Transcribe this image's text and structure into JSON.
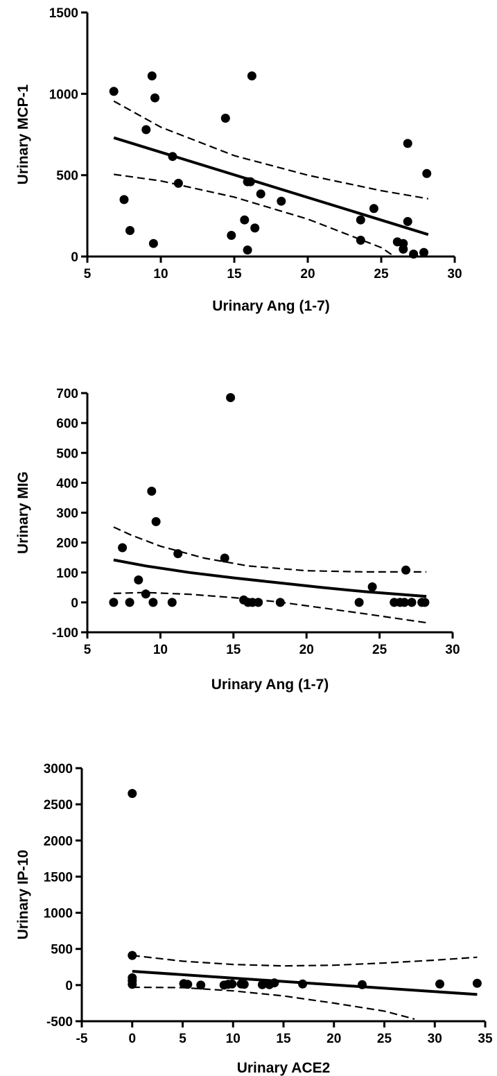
{
  "chart_data": [
    {
      "type": "scatter",
      "xlabel": "Urinary Ang (1-7)",
      "ylabel": "Urinary MCP-1",
      "xlim": [
        5,
        30
      ],
      "ylim": [
        0,
        1500
      ],
      "xticks": [
        5,
        10,
        15,
        20,
        25,
        30
      ],
      "yticks": [
        0,
        500,
        1000,
        1500
      ],
      "grid": false,
      "points": [
        [
          6.8,
          1015
        ],
        [
          7.5,
          350
        ],
        [
          7.9,
          160
        ],
        [
          9.0,
          780
        ],
        [
          9.4,
          1110
        ],
        [
          9.6,
          975
        ],
        [
          9.5,
          80
        ],
        [
          10.8,
          615
        ],
        [
          11.2,
          450
        ],
        [
          14.4,
          850
        ],
        [
          14.8,
          130
        ],
        [
          15.7,
          225
        ],
        [
          15.9,
          460
        ],
        [
          16.1,
          460
        ],
        [
          16.2,
          1110
        ],
        [
          16.4,
          175
        ],
        [
          16.8,
          385
        ],
        [
          15.9,
          40
        ],
        [
          18.2,
          340
        ],
        [
          23.6,
          225
        ],
        [
          23.6,
          100
        ],
        [
          24.5,
          295
        ],
        [
          26.1,
          90
        ],
        [
          26.5,
          80
        ],
        [
          26.5,
          45
        ],
        [
          26.8,
          695
        ],
        [
          26.8,
          215
        ],
        [
          27.2,
          15
        ],
        [
          27.9,
          25
        ],
        [
          28.1,
          510
        ]
      ],
      "fit_line": [
        [
          6.8,
          730
        ],
        [
          28.2,
          135
        ]
      ],
      "ci_upper": [
        [
          6.8,
          955
        ],
        [
          10,
          795
        ],
        [
          15,
          620
        ],
        [
          20,
          500
        ],
        [
          25,
          405
        ],
        [
          28.2,
          355
        ]
      ],
      "ci_lower": [
        [
          6.8,
          505
        ],
        [
          10,
          465
        ],
        [
          15,
          365
        ],
        [
          20,
          230
        ],
        [
          25,
          55
        ],
        [
          25.9,
          0
        ]
      ]
    },
    {
      "type": "scatter",
      "xlabel": "Urinary Ang (1-7)",
      "ylabel": "Urinary MIG",
      "xlim": [
        5,
        30
      ],
      "ylim": [
        -100,
        700
      ],
      "xticks": [
        5,
        10,
        15,
        20,
        25,
        30
      ],
      "yticks": [
        -100,
        0,
        100,
        200,
        300,
        400,
        500,
        600,
        700
      ],
      "grid": false,
      "points": [
        [
          6.8,
          0
        ],
        [
          7.4,
          183
        ],
        [
          7.9,
          0
        ],
        [
          8.5,
          75
        ],
        [
          9.0,
          28
        ],
        [
          9.4,
          372
        ],
        [
          9.5,
          0
        ],
        [
          9.7,
          270
        ],
        [
          10.8,
          0
        ],
        [
          11.2,
          163
        ],
        [
          14.4,
          148
        ],
        [
          14.8,
          685
        ],
        [
          15.7,
          8
        ],
        [
          16.0,
          0
        ],
        [
          16.3,
          0
        ],
        [
          16.7,
          0
        ],
        [
          18.2,
          0
        ],
        [
          23.6,
          0
        ],
        [
          24.5,
          52
        ],
        [
          26.0,
          0
        ],
        [
          26.4,
          0
        ],
        [
          26.7,
          0
        ],
        [
          26.8,
          108
        ],
        [
          27.2,
          0
        ],
        [
          27.9,
          0
        ],
        [
          28.1,
          0
        ]
      ],
      "fit_line": [
        [
          6.8,
          142
        ],
        [
          9,
          122
        ],
        [
          12,
          100
        ],
        [
          15,
          82
        ],
        [
          18,
          66
        ],
        [
          21,
          50
        ],
        [
          24,
          36
        ],
        [
          28.2,
          20
        ]
      ],
      "ci_upper": [
        [
          6.8,
          252
        ],
        [
          8,
          225
        ],
        [
          10,
          188
        ],
        [
          13,
          148
        ],
        [
          16,
          122
        ],
        [
          20,
          106
        ],
        [
          24,
          102
        ],
        [
          28.2,
          102
        ]
      ],
      "ci_lower": [
        [
          6.8,
          30
        ],
        [
          9,
          33
        ],
        [
          12,
          27
        ],
        [
          15,
          16
        ],
        [
          18,
          2
        ],
        [
          21,
          -18
        ],
        [
          24,
          -38
        ],
        [
          28.2,
          -68
        ]
      ]
    },
    {
      "type": "scatter",
      "xlabel": "Urinary ACE2",
      "ylabel": "Urinary IP-10",
      "xlim": [
        -5,
        35
      ],
      "ylim": [
        -500,
        3000
      ],
      "xticks": [
        -5,
        0,
        5,
        10,
        15,
        20,
        25,
        30,
        35
      ],
      "yticks": [
        -500,
        0,
        500,
        1000,
        1500,
        2000,
        2500,
        3000
      ],
      "grid": false,
      "points": [
        [
          0,
          2650
        ],
        [
          0,
          410
        ],
        [
          0,
          100
        ],
        [
          0,
          60
        ],
        [
          0,
          10
        ],
        [
          5.1,
          20
        ],
        [
          5.5,
          10
        ],
        [
          6.8,
          0
        ],
        [
          9.1,
          0
        ],
        [
          9.5,
          10
        ],
        [
          9.9,
          15
        ],
        [
          10.8,
          15
        ],
        [
          11.1,
          10
        ],
        [
          12.9,
          5
        ],
        [
          13.6,
          5
        ],
        [
          14.1,
          30
        ],
        [
          16.9,
          15
        ],
        [
          22.8,
          5
        ],
        [
          30.5,
          15
        ],
        [
          34.2,
          25
        ]
      ],
      "fit_line": [
        [
          0,
          190
        ],
        [
          34.2,
          -130
        ]
      ],
      "ci_upper": [
        [
          0,
          410
        ],
        [
          5,
          330
        ],
        [
          10,
          285
        ],
        [
          15,
          265
        ],
        [
          20,
          275
        ],
        [
          25,
          305
        ],
        [
          30,
          345
        ],
        [
          34.2,
          385
        ]
      ],
      "ci_lower": [
        [
          0,
          -30
        ],
        [
          5,
          -35
        ],
        [
          10,
          -80
        ],
        [
          15,
          -150
        ],
        [
          20,
          -250
        ],
        [
          25,
          -360
        ],
        [
          28,
          -470
        ]
      ]
    }
  ]
}
